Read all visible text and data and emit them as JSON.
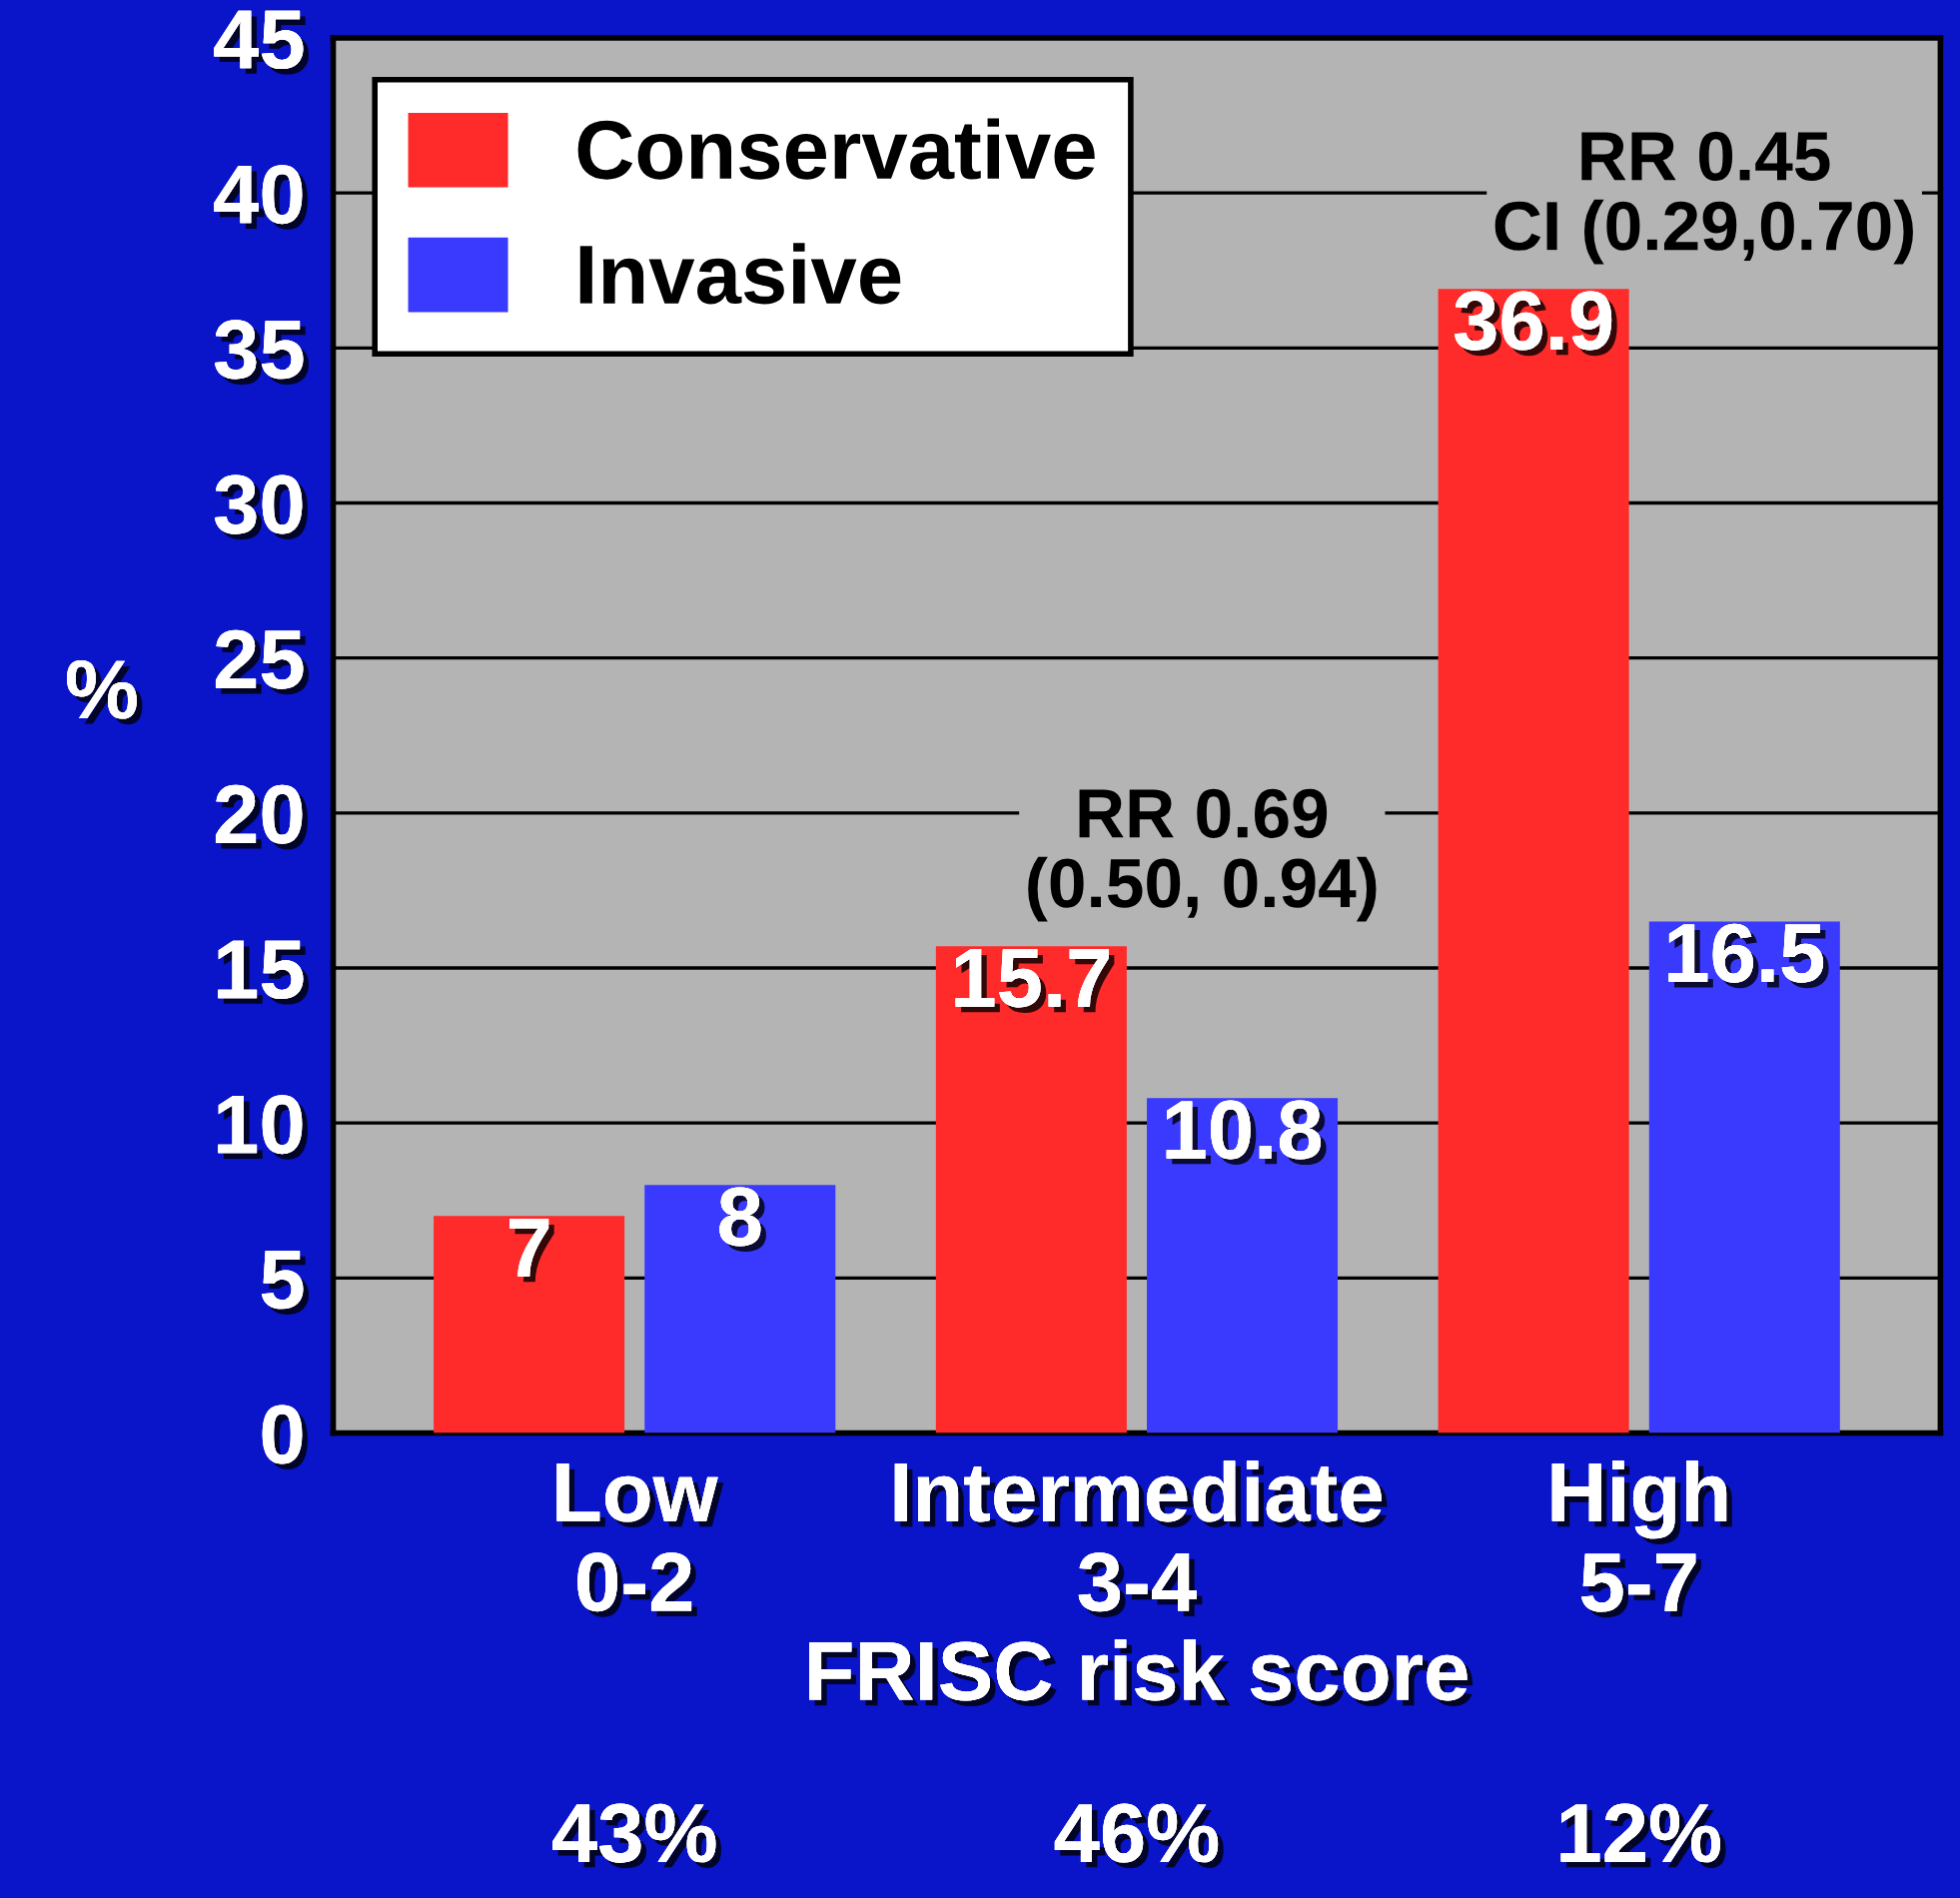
{
  "chart_data": {
    "type": "bar",
    "ylabel": "%",
    "xlabel": "FRISC risk score",
    "categories": [
      "Low\n0-2",
      "Intermediate\n3-4",
      "High\n5-7"
    ],
    "series": [
      {
        "name": "Conservative",
        "color": "#ff2a2a",
        "values": [
          7,
          15.7,
          36.9
        ]
      },
      {
        "name": "Invasive",
        "color": "#3a3aff",
        "values": [
          8,
          10.8,
          16.5
        ]
      }
    ],
    "ylim": [
      0,
      45
    ],
    "yticks": [
      0,
      5,
      10,
      15,
      20,
      25,
      30,
      35,
      40,
      45
    ],
    "grid": "y",
    "legend": "top left",
    "data_labels": true,
    "annotations": [
      "RR 0.69\n(0.50, 0.94)",
      "RR 0.45\nCI (0.29,0.70)",
      "43%",
      "46%",
      "12%"
    ]
  }
}
